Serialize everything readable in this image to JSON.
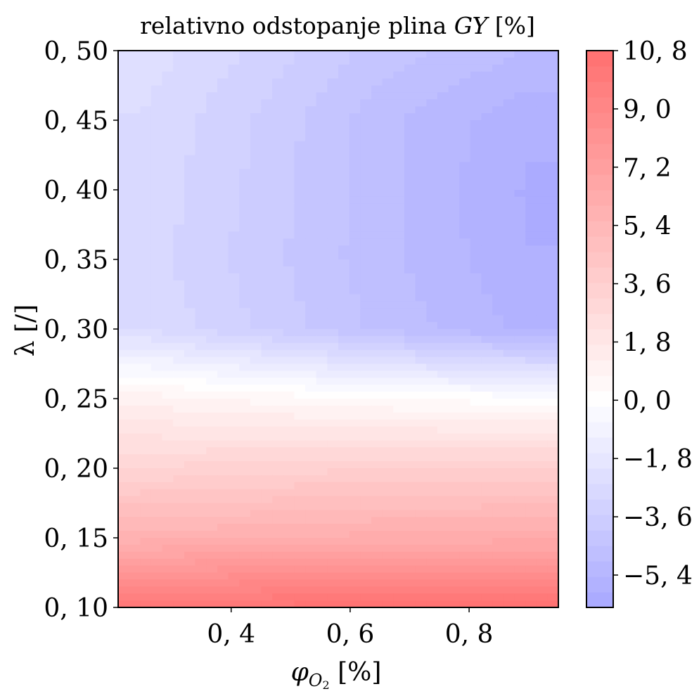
{
  "chart_data": {
    "type": "heatmap",
    "title": "relativno odstopanje plina",
    "title_var": "GY",
    "title_unit": "[%]",
    "xlabel_symbol": "φ",
    "xlabel_sub": "O",
    "xlabel_subsub": "2",
    "xlabel_unit": "[%]",
    "ylabel": "λ [/]",
    "xlim": [
      0.21,
      0.95
    ],
    "ylim": [
      0.1,
      0.5
    ],
    "x_ticks": [
      0.4,
      0.6,
      0.8
    ],
    "x_tick_labels": [
      "0, 4",
      "0, 6",
      "0, 8"
    ],
    "y_ticks": [
      0.1,
      0.15,
      0.2,
      0.25,
      0.3,
      0.35,
      0.4,
      0.45,
      0.5
    ],
    "y_tick_labels": [
      "0, 10",
      "0, 15",
      "0, 20",
      "0, 25",
      "0, 30",
      "0, 35",
      "0, 40",
      "0, 45",
      "0, 50"
    ],
    "colorbar": {
      "colormap": "bwr-light",
      "vmin": -6.4,
      "vmax": 10.8,
      "levels": 36,
      "min_color": "#a8a8ff",
      "mid_color": "#ffffff",
      "max_color": "#ff7070",
      "ticks": [
        -5.4,
        -3.6,
        -1.8,
        0.0,
        1.8,
        3.6,
        5.4,
        7.2,
        9.0,
        10.8
      ],
      "tick_labels": [
        "−5, 4",
        "−3, 6",
        "−1, 8",
        "0, 0",
        "1, 8",
        "3, 6",
        "5, 4",
        "7, 2",
        "9, 0",
        "10, 8"
      ]
    },
    "field_samples": {
      "lambda": [
        0.1,
        0.15,
        0.2,
        0.25,
        0.3,
        0.35,
        0.4,
        0.45,
        0.5
      ],
      "phi_O2": [
        0.25,
        0.45,
        0.65,
        0.9
      ],
      "values": [
        [
          10.2,
          10.5,
          10.7,
          10.8
        ],
        [
          5.8,
          6.0,
          6.2,
          6.3
        ],
        [
          3.2,
          3.4,
          3.6,
          3.6
        ],
        [
          1.0,
          0.6,
          0.3,
          0.0
        ],
        [
          -2.6,
          -3.6,
          -4.6,
          -5.6
        ],
        [
          -2.8,
          -3.8,
          -4.8,
          -5.9
        ],
        [
          -2.7,
          -3.7,
          -4.8,
          -6.0
        ],
        [
          -2.6,
          -3.6,
          -4.8,
          -5.8
        ],
        [
          -2.3,
          -3.2,
          -4.2,
          -5.0
        ]
      ]
    },
    "grid": false,
    "colorbar_position": "right"
  }
}
